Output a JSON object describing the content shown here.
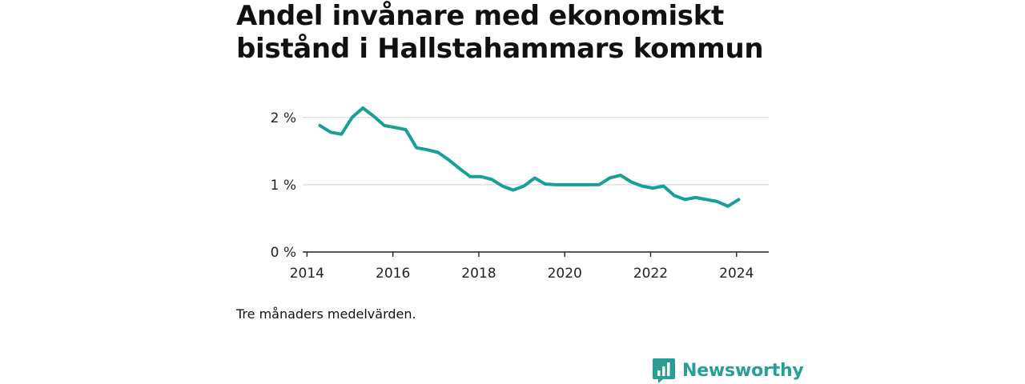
{
  "title": "Andel invånare med ekonomiskt bistånd i Hallstahammars kommun",
  "note": "Tre månaders medelvärden.",
  "brand": {
    "name": "Newsworthy",
    "icon": "bar-chart-speech-bubble-icon",
    "color": "#2a9d95"
  },
  "colors": {
    "line": "#16a096",
    "grid": "#d9d9d9",
    "axis": "#222222"
  },
  "chart_data": {
    "type": "line",
    "title": "Andel invånare med ekonomiskt bistånd i Hallstahammars kommun",
    "xlabel": "",
    "ylabel": "",
    "xlim": [
      2013.9,
      2024.75
    ],
    "ylim": [
      0,
      2.2
    ],
    "x_ticks": [
      2014,
      2016,
      2018,
      2020,
      2022,
      2024
    ],
    "y_ticks": [
      {
        "value": 0,
        "label": "0 %"
      },
      {
        "value": 1,
        "label": "1 %"
      },
      {
        "value": 2,
        "label": "2 %"
      }
    ],
    "grid": true,
    "series": [
      {
        "x": [
          2014.3,
          2014.55,
          2014.8,
          2015.05,
          2015.3,
          2015.55,
          2015.8,
          2016.05,
          2016.3,
          2016.55,
          2016.8,
          2017.05,
          2017.3,
          2017.55,
          2017.8,
          2018.05,
          2018.3,
          2018.55,
          2018.8,
          2019.05,
          2019.3,
          2019.55,
          2019.8,
          2020.05,
          2020.3,
          2020.55,
          2020.8,
          2021.05,
          2021.3,
          2021.55,
          2021.8,
          2022.05,
          2022.3,
          2022.55,
          2022.8,
          2023.05,
          2023.3,
          2023.55,
          2023.8,
          2024.05
        ],
        "y": [
          1.88,
          1.78,
          1.75,
          2.0,
          2.14,
          2.02,
          1.88,
          1.85,
          1.82,
          1.55,
          1.52,
          1.48,
          1.37,
          1.24,
          1.12,
          1.12,
          1.08,
          0.98,
          0.92,
          0.98,
          1.1,
          1.01,
          1.0,
          1.0,
          1.0,
          1.0,
          1.0,
          1.1,
          1.14,
          1.04,
          0.98,
          0.95,
          0.98,
          0.84,
          0.78,
          0.81,
          0.78,
          0.75,
          0.68,
          0.78
        ]
      }
    ]
  }
}
